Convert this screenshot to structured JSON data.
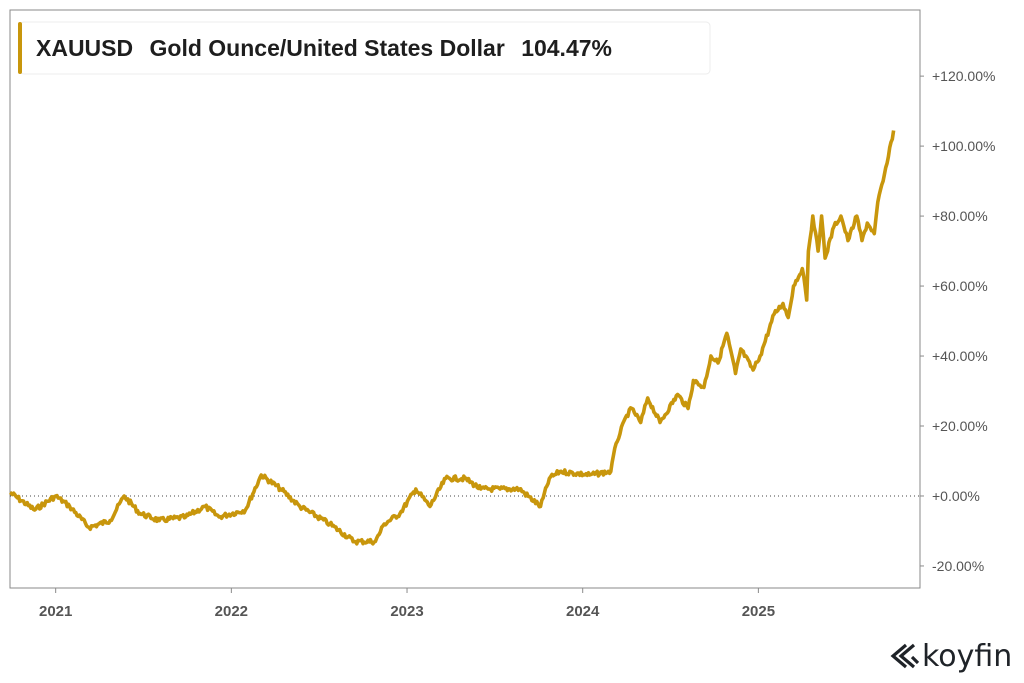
{
  "chart_data": {
    "type": "line",
    "title": "",
    "legend": {
      "ticker": "XAUUSD",
      "name": "Gold Ounce/United States Dollar",
      "value": "104.47%",
      "placement": "top-left"
    },
    "xlabel": "",
    "ylabel": "",
    "x_tick_labels": [
      "2021",
      "2022",
      "2023",
      "2024",
      "2025"
    ],
    "x_ticks": [
      2021,
      2022,
      2023,
      2024,
      2025
    ],
    "y_tick_labels": [
      "+120.00%",
      "+100.00%",
      "+80.00%",
      "+60.00%",
      "+40.00%",
      "+20.00%",
      "+0.00%",
      "-20.00%"
    ],
    "y_ticks": [
      120,
      100,
      80,
      60,
      40,
      20,
      0,
      -20
    ],
    "xlim": [
      2020.74,
      2025.92
    ],
    "ylim": [
      -26.3,
      138.9
    ],
    "grid": false,
    "reference_line": 0,
    "series": [
      {
        "name": "XAUUSD",
        "color": "#C8960C",
        "x": [
          2020.74,
          2020.88,
          2021.0,
          2021.08,
          2021.19,
          2021.31,
          2021.39,
          2021.48,
          2021.59,
          2021.74,
          2021.85,
          2021.93,
          2022.08,
          2022.17,
          2022.28,
          2022.39,
          2022.56,
          2022.7,
          2022.82,
          2022.87,
          2022.96,
          2023.05,
          2023.13,
          2023.22,
          2023.33,
          2023.42,
          2023.53,
          2023.64,
          2023.76,
          2023.81,
          2023.87,
          2024.04,
          2024.16,
          2024.19,
          2024.25,
          2024.28,
          2024.33,
          2024.37,
          2024.44,
          2024.54,
          2024.6,
          2024.63,
          2024.69,
          2024.73,
          2024.77,
          2024.82,
          2024.87,
          2024.9,
          2024.97,
          2025.01,
          2025.09,
          2025.14,
          2025.17,
          2025.2,
          2025.25,
          2025.275,
          2025.285,
          2025.31,
          2025.34,
          2025.36,
          2025.38,
          2025.43,
          2025.47,
          2025.51,
          2025.56,
          2025.59,
          2025.62,
          2025.66,
          2025.68,
          2025.71,
          2025.74,
          2025.77
        ],
        "values": [
          1,
          -4,
          0,
          -3,
          -9,
          -7,
          0,
          -5,
          -7,
          -6,
          -3,
          -6,
          -4,
          6,
          2,
          -3,
          -8,
          -13,
          -13,
          -8,
          -5,
          2,
          -3,
          5,
          5,
          2,
          2,
          2,
          -3,
          5,
          7,
          6,
          7,
          15,
          23,
          25,
          21,
          28,
          21,
          29,
          25,
          33,
          31,
          40,
          38,
          46.5,
          35,
          42,
          36,
          40,
          52,
          55,
          51,
          60,
          65,
          56,
          70,
          80,
          70,
          80,
          68,
          77,
          80,
          73,
          80,
          73,
          78,
          75,
          84,
          90,
          97,
          104.47
        ]
      }
    ]
  },
  "branding": {
    "logo_text": "koyfin"
  }
}
